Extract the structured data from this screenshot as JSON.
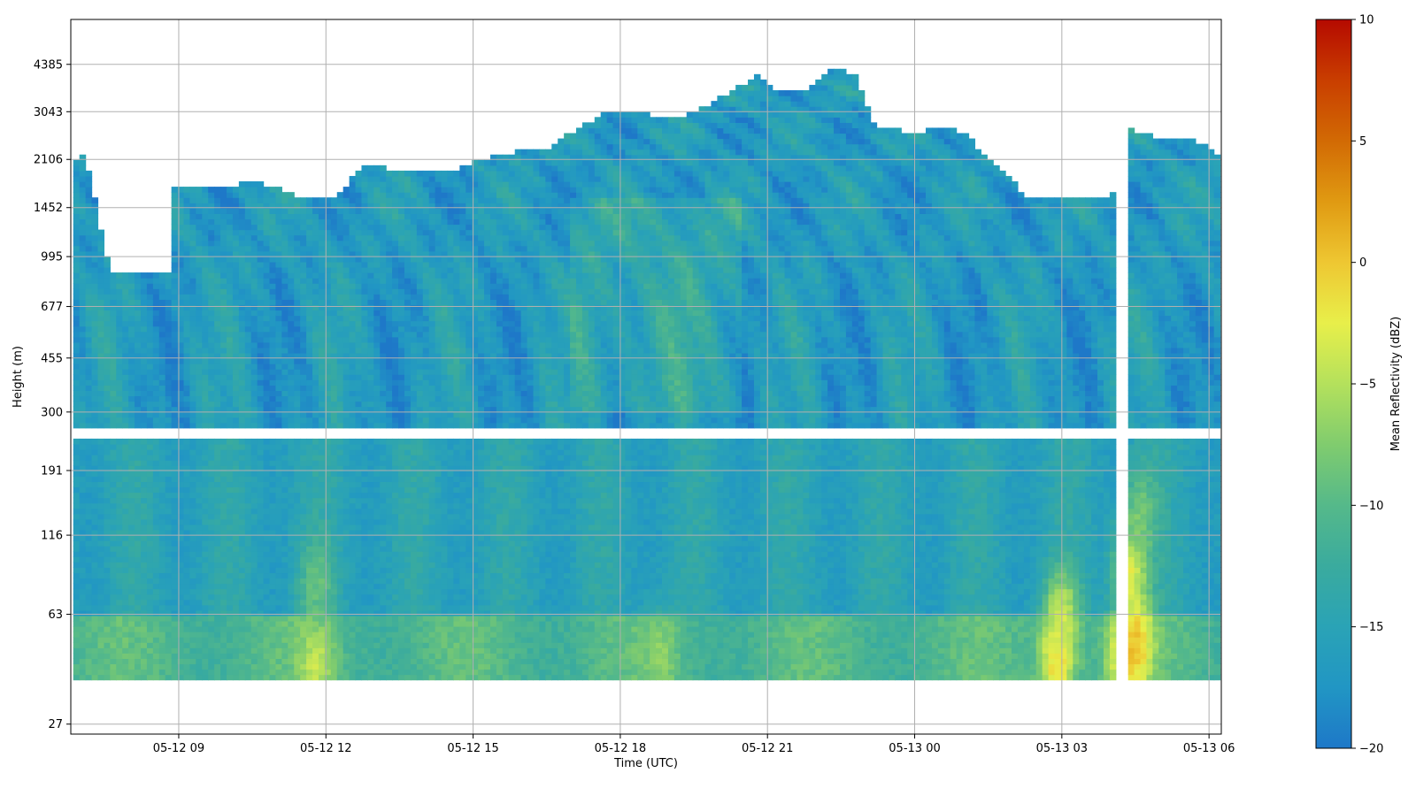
{
  "chart_data": {
    "type": "heatmap",
    "title": "",
    "xlabel": "Time (UTC)",
    "ylabel": "Height (m)",
    "x_ticks": [
      "05-12 09",
      "05-12 12",
      "05-12 15",
      "05-12 18",
      "05-12 21",
      "05-13 00",
      "05-13 03",
      "05-13 06"
    ],
    "x_tick_hours": [
      9,
      12,
      15,
      18,
      21,
      24,
      27,
      30
    ],
    "x_range_hours": [
      6.8,
      30.25
    ],
    "x_reference_date": "05-12",
    "y_ticks": [
      "27",
      "63",
      "116",
      "191",
      "300",
      "455",
      "677",
      "995",
      "1452",
      "2106",
      "3043",
      "4385"
    ],
    "y_tick_values": [
      27,
      63,
      116,
      191,
      300,
      455,
      677,
      995,
      1452,
      2106,
      3043,
      4385
    ],
    "y_scale": "log",
    "y_range": [
      25,
      6200
    ],
    "grid": true,
    "colorbar": {
      "label": "Mean Reflectivity (dBZ)",
      "min": -20,
      "max": 10,
      "ticks": [
        "10",
        "5",
        "0",
        "−5",
        "−10",
        "−15",
        "−20"
      ],
      "tick_values": [
        10,
        5,
        0,
        -5,
        -10,
        -15,
        -20
      ],
      "colors": [
        "#1e78c8",
        "#2196c4",
        "#2aa3b6",
        "#3aab9e",
        "#55b98a",
        "#80cc6e",
        "#b4e15c",
        "#e8ef4a",
        "#eec732",
        "#e09a12",
        "#d26a04",
        "#c93e00",
        "#b50a00"
      ]
    },
    "gaps": {
      "height_band_m": [
        245,
        265
      ],
      "time_band_h": [
        28.05,
        28.3
      ],
      "missing_column_h": [
        7.6,
        8.8
      ],
      "missing_column_top_m": 880
    },
    "cloud_top_m": [
      [
        6.8,
        2100
      ],
      [
        7.1,
        2200
      ],
      [
        7.6,
        880
      ],
      [
        8.8,
        880
      ],
      [
        8.85,
        1700
      ],
      [
        10.0,
        1700
      ],
      [
        10.5,
        1800
      ],
      [
        11.0,
        1700
      ],
      [
        11.5,
        1550
      ],
      [
        12.2,
        1550
      ],
      [
        12.5,
        1800
      ],
      [
        12.7,
        2000
      ],
      [
        13.2,
        2000
      ],
      [
        13.5,
        1900
      ],
      [
        14.5,
        1900
      ],
      [
        14.8,
        2000
      ],
      [
        15.5,
        2200
      ],
      [
        16.5,
        2300
      ],
      [
        17.0,
        2600
      ],
      [
        17.8,
        3100
      ],
      [
        18.5,
        3000
      ],
      [
        19.0,
        2900
      ],
      [
        19.5,
        3000
      ],
      [
        20.0,
        3400
      ],
      [
        20.8,
        4000
      ],
      [
        21.2,
        3600
      ],
      [
        21.8,
        3600
      ],
      [
        22.3,
        4200
      ],
      [
        22.8,
        4100
      ],
      [
        23.2,
        2700
      ],
      [
        24.0,
        2600
      ],
      [
        24.5,
        2700
      ],
      [
        25.0,
        2600
      ],
      [
        25.5,
        2100
      ],
      [
        25.9,
        1900
      ],
      [
        26.3,
        1550
      ],
      [
        27.0,
        1550
      ],
      [
        27.5,
        1600
      ],
      [
        28.0,
        1550
      ],
      [
        28.35,
        2700
      ],
      [
        28.9,
        2500
      ],
      [
        29.5,
        2500
      ],
      [
        30.0,
        2300
      ],
      [
        30.2,
        2200
      ]
    ],
    "bottom_band_top_m": 63,
    "data_bottom_m": 38,
    "hotspots": [
      {
        "t": 11.8,
        "h": 44,
        "v": -4
      },
      {
        "t": 11.8,
        "h": 80,
        "v": -9
      },
      {
        "t": 18.8,
        "h": 45,
        "v": -7
      },
      {
        "t": 26.9,
        "h": 44,
        "v": 0
      },
      {
        "t": 27.0,
        "h": 63,
        "v": -4
      },
      {
        "t": 28.3,
        "h": 45,
        "v": 0
      },
      {
        "t": 28.5,
        "h": 52,
        "v": 0
      },
      {
        "t": 28.4,
        "h": 90,
        "v": -2
      },
      {
        "t": 28.6,
        "h": 140,
        "v": -8
      }
    ]
  }
}
